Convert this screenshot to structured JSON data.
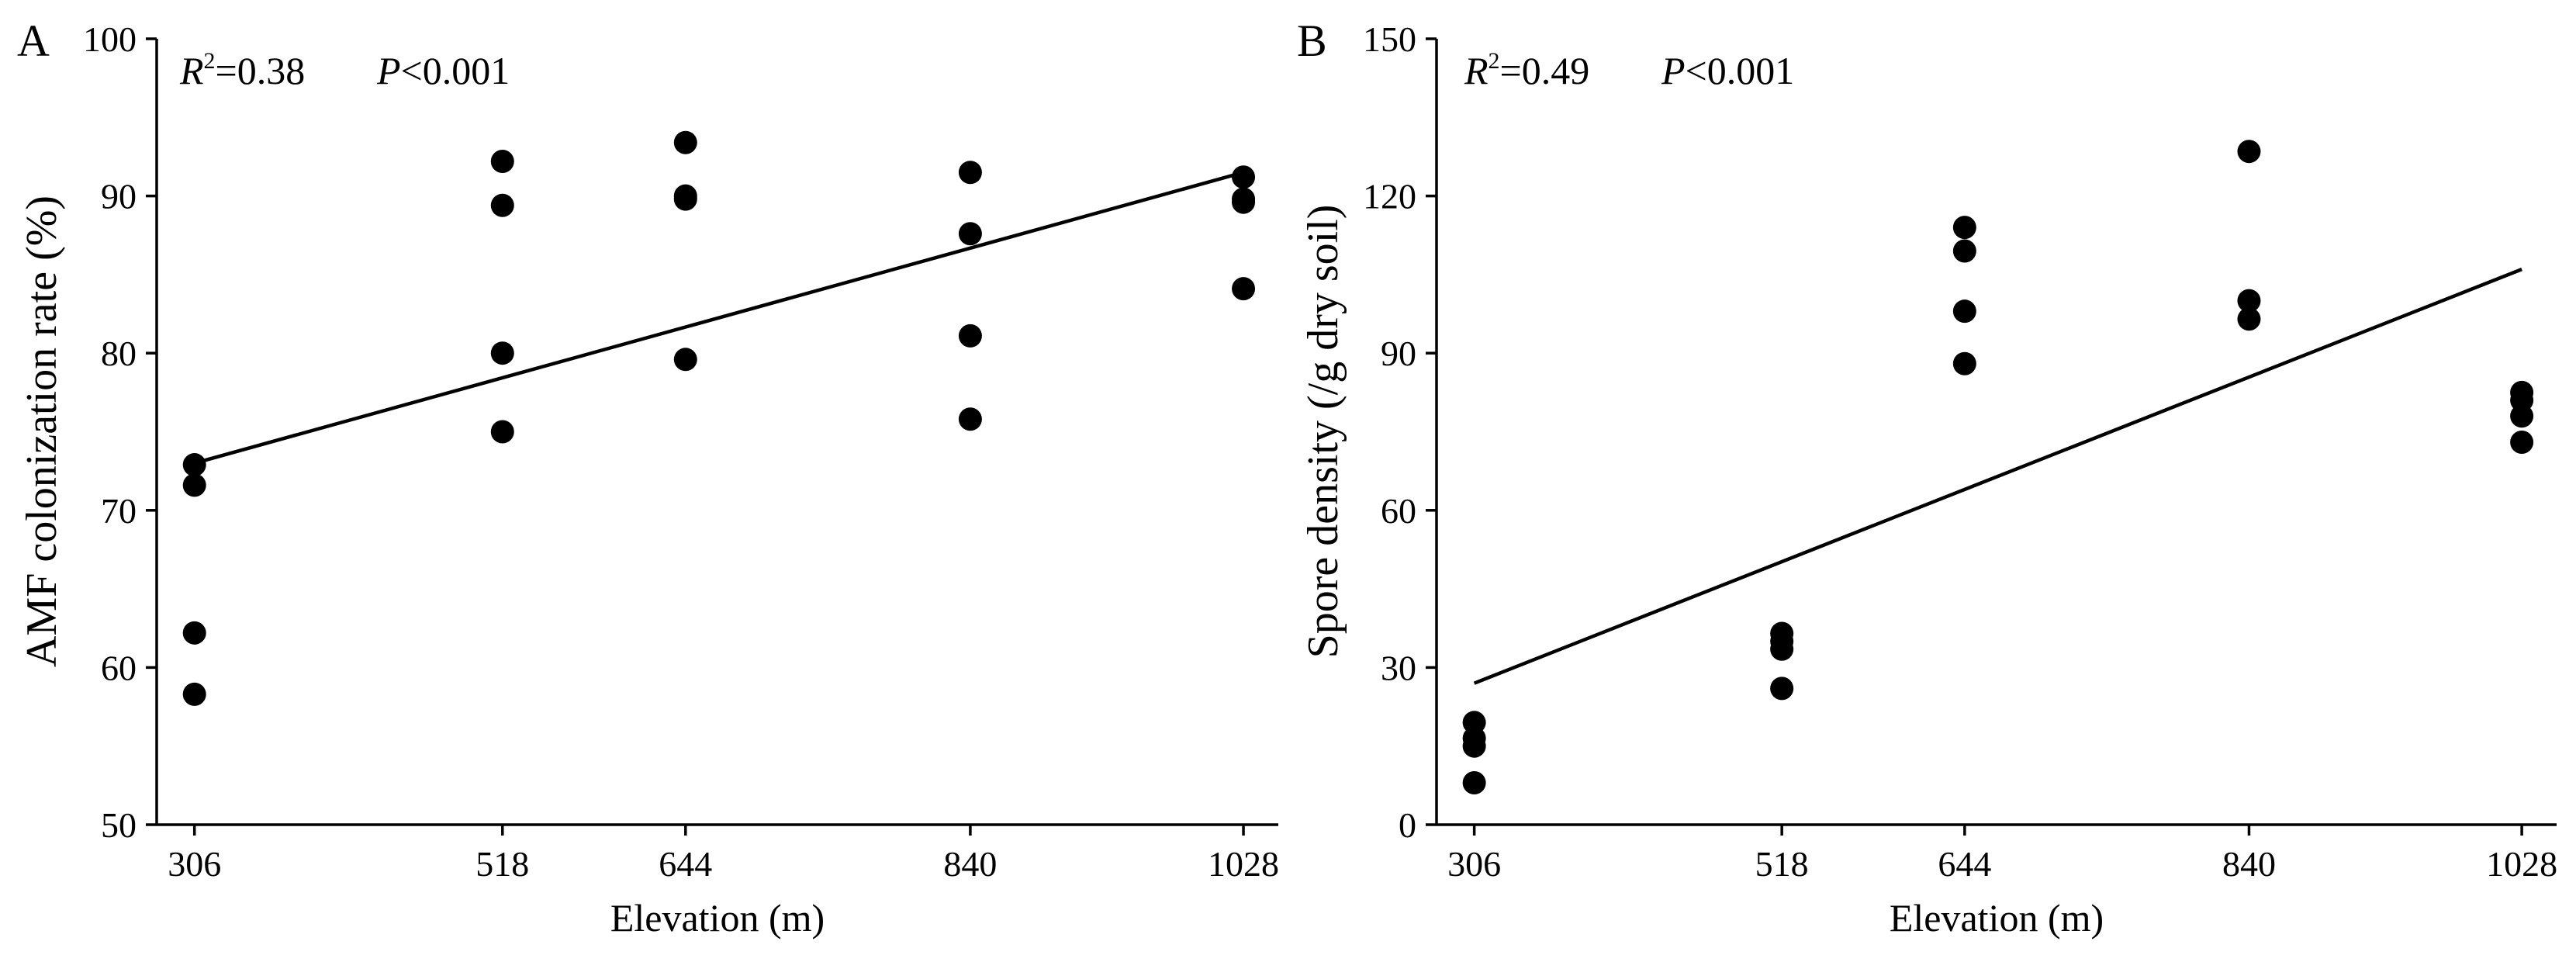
{
  "figure": {
    "panels": [
      {
        "id": "A",
        "panel_label": "A",
        "stats": {
          "r2_label": "R",
          "r2_sup": "2",
          "r2_value": "=0.38",
          "p_label": "P",
          "p_value": "<0.001"
        }
      },
      {
        "id": "B",
        "panel_label": "B",
        "stats": {
          "r2_label": "R",
          "r2_sup": "2",
          "r2_value": "=0.49",
          "p_label": "P",
          "p_value": "<0.001"
        }
      }
    ]
  },
  "chart_data": [
    {
      "type": "scatter",
      "title": "",
      "xlabel": "Elevation (m)",
      "ylabel": "AMF colonization rate (%)",
      "x_ticks": [
        306,
        518,
        644,
        840,
        1028
      ],
      "xlim": [
        280,
        1052
      ],
      "ylim": [
        50,
        100
      ],
      "y_ticks": [
        50,
        60,
        70,
        80,
        90,
        100
      ],
      "grid": false,
      "points": [
        {
          "x": 306,
          "y": 72.9
        },
        {
          "x": 306,
          "y": 71.6
        },
        {
          "x": 306,
          "y": 62.2
        },
        {
          "x": 306,
          "y": 58.3
        },
        {
          "x": 518,
          "y": 92.2
        },
        {
          "x": 518,
          "y": 89.4
        },
        {
          "x": 518,
          "y": 80.0
        },
        {
          "x": 518,
          "y": 75.0
        },
        {
          "x": 644,
          "y": 93.4
        },
        {
          "x": 644,
          "y": 90.0
        },
        {
          "x": 644,
          "y": 89.8
        },
        {
          "x": 644,
          "y": 79.6
        },
        {
          "x": 840,
          "y": 91.5
        },
        {
          "x": 840,
          "y": 87.6
        },
        {
          "x": 840,
          "y": 81.1
        },
        {
          "x": 840,
          "y": 75.8
        },
        {
          "x": 1028,
          "y": 91.2
        },
        {
          "x": 1028,
          "y": 89.8
        },
        {
          "x": 1028,
          "y": 89.6
        },
        {
          "x": 1028,
          "y": 84.1
        }
      ],
      "fit_line": {
        "x": [
          306,
          1028
        ],
        "y": [
          73.0,
          91.5
        ]
      },
      "annotations": [
        "R2=0.38",
        "P<0.001"
      ]
    },
    {
      "type": "scatter",
      "title": "",
      "xlabel": "Elevation (m)",
      "ylabel": "Spore density (/g dry soil)",
      "x_ticks": [
        306,
        518,
        644,
        840,
        1028
      ],
      "xlim": [
        280,
        1052
      ],
      "ylim": [
        0,
        150
      ],
      "y_ticks": [
        0,
        30,
        60,
        90,
        120,
        150
      ],
      "grid": false,
      "points": [
        {
          "x": 306,
          "y": 19.5
        },
        {
          "x": 306,
          "y": 16.5
        },
        {
          "x": 306,
          "y": 15.0
        },
        {
          "x": 306,
          "y": 8.0
        },
        {
          "x": 518,
          "y": 36.5
        },
        {
          "x": 518,
          "y": 35.0
        },
        {
          "x": 518,
          "y": 33.5
        },
        {
          "x": 518,
          "y": 26.0
        },
        {
          "x": 644,
          "y": 114.0
        },
        {
          "x": 644,
          "y": 109.5
        },
        {
          "x": 644,
          "y": 98.0
        },
        {
          "x": 644,
          "y": 88.0
        },
        {
          "x": 840,
          "y": 128.5
        },
        {
          "x": 840,
          "y": 100.0
        },
        {
          "x": 840,
          "y": 96.5
        },
        {
          "x": 1028,
          "y": 82.5
        },
        {
          "x": 1028,
          "y": 81.0
        },
        {
          "x": 1028,
          "y": 78.0
        },
        {
          "x": 1028,
          "y": 73.0
        }
      ],
      "fit_line": {
        "x": [
          306,
          1028
        ],
        "y": [
          27.0,
          106.0
        ]
      },
      "annotations": [
        "R2=0.49",
        "P<0.001"
      ]
    }
  ]
}
